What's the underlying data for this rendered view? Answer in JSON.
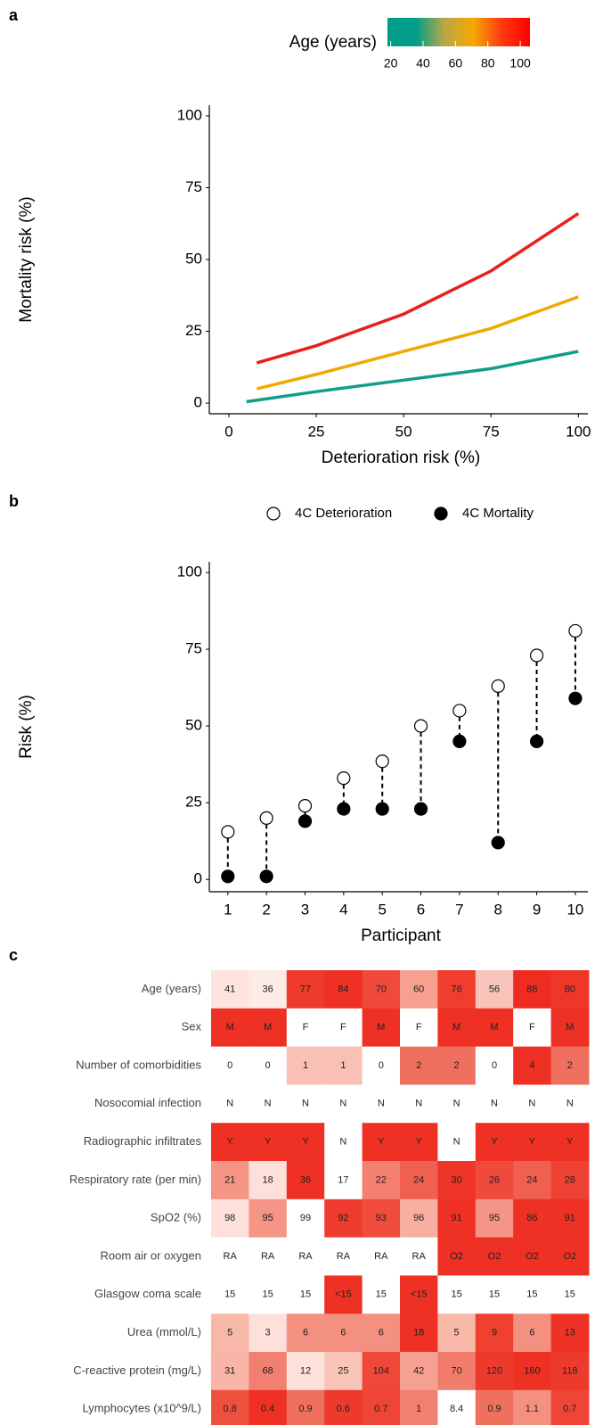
{
  "panels": [
    "a",
    "b",
    "c"
  ],
  "chart_data": [
    {
      "type": "line",
      "xlabel": "Deterioration risk (%)",
      "ylabel": "Mortality risk (%)",
      "xlim": [
        -5.6,
        104
      ],
      "ylim": [
        -3.7,
        103.7
      ],
      "xticks": [
        0,
        25,
        50,
        75,
        100
      ],
      "yticks": [
        0,
        25,
        50,
        75,
        100
      ],
      "colorbar": {
        "title": "Age (years)",
        "colors": [
          "#009e8a",
          "#009e8a",
          "#b8a848",
          "#f5a800",
          "#ff3a10",
          "#ff0000"
        ],
        "lim": [
          18,
          106
        ],
        "ticks": [
          20,
          40,
          60,
          80,
          100
        ]
      },
      "series": [
        {
          "color": "#e8201a",
          "x": [
            8,
            25,
            50,
            75,
            100
          ],
          "y": [
            14,
            20,
            31,
            46,
            66
          ]
        },
        {
          "color": "#eeaa00",
          "x": [
            8,
            25,
            50,
            75,
            100
          ],
          "y": [
            5,
            10,
            18,
            26,
            37
          ]
        },
        {
          "color": "#109e8a",
          "x": [
            5,
            25,
            50,
            75,
            100
          ],
          "y": [
            0.5,
            4,
            8,
            12,
            18
          ]
        }
      ]
    },
    {
      "type": "dumbbell",
      "xlabel": "Participant",
      "ylabel": "Risk (%)",
      "xlim": [
        0.52,
        10.44
      ],
      "ylim": [
        -4,
        103.5
      ],
      "xticks": [
        1,
        2,
        3,
        4,
        5,
        6,
        7,
        8,
        9,
        10
      ],
      "yticks": [
        0,
        25,
        50,
        75,
        100
      ],
      "x": [
        1,
        2,
        3,
        4,
        5,
        6,
        7,
        8,
        9,
        10
      ],
      "series": [
        {
          "name": "4C Deterioration",
          "color": "#ffffff",
          "values": [
            15.5,
            20,
            24,
            33,
            38.5,
            50,
            55,
            63,
            73,
            81
          ]
        },
        {
          "name": "4C Mortality",
          "color": "#000000",
          "values": [
            1,
            1,
            19,
            23,
            23,
            23,
            45,
            12,
            45,
            59
          ]
        }
      ]
    }
  ],
  "table": {
    "rows": [
      {
        "label": "Age (years)",
        "cells": [
          41,
          36,
          77,
          84,
          70,
          60,
          76,
          56,
          88,
          80
        ],
        "colors": [
          "#fde4de",
          "#fdebe7",
          "#ef3b2c",
          "#ee3124",
          "#f04a3c",
          "#f6a090",
          "#ef3d2e",
          "#f8c3b8",
          "#ee2d20",
          "#ef3629"
        ]
      },
      {
        "label": "Sex",
        "cells": [
          "M",
          "M",
          "F",
          "F",
          "M",
          "F",
          "M",
          "M",
          "F",
          "M"
        ],
        "colors": [
          "#ee3124",
          "#ee3124",
          "#ffffff",
          "#ffffff",
          "#ee3124",
          "#ffffff",
          "#ee3124",
          "#ee3124",
          "#ffffff",
          "#ee3124"
        ]
      },
      {
        "label": "Number of comorbidities",
        "cells": [
          0,
          0,
          1,
          1,
          0,
          2,
          2,
          0,
          4,
          2
        ],
        "colors": [
          "#ffffff",
          "#ffffff",
          "#f9c0b5",
          "#f9c0b5",
          "#ffffff",
          "#f07060",
          "#f07060",
          "#ffffff",
          "#ee3124",
          "#f07060"
        ]
      },
      {
        "label": "Nosocomial infection",
        "cells": [
          "N",
          "N",
          "N",
          "N",
          "N",
          "N",
          "N",
          "N",
          "N",
          "N"
        ],
        "colors": [
          "#ffffff",
          "#ffffff",
          "#ffffff",
          "#ffffff",
          "#ffffff",
          "#ffffff",
          "#ffffff",
          "#ffffff",
          "#ffffff",
          "#ffffff"
        ]
      },
      {
        "label": "Radiographic infiltrates",
        "cells": [
          "Y",
          "Y",
          "Y",
          "N",
          "Y",
          "Y",
          "N",
          "Y",
          "Y",
          "Y"
        ],
        "colors": [
          "#ee3124",
          "#ee3124",
          "#ee3124",
          "#ffffff",
          "#ee3124",
          "#ee3124",
          "#ffffff",
          "#ee3124",
          "#ee3124",
          "#ee3124"
        ]
      },
      {
        "label": "Respiratory rate (per min)",
        "cells": [
          21,
          18,
          36,
          17,
          22,
          24,
          30,
          26,
          24,
          28
        ],
        "colors": [
          "#f59585",
          "#fde0da",
          "#ee3124",
          "#ffffff",
          "#f48070",
          "#f06050",
          "#ee3528",
          "#ef4a3c",
          "#f06050",
          "#ef4234"
        ]
      },
      {
        "label": "SpO2 (%)",
        "cells": [
          98,
          95,
          99,
          92,
          93,
          96,
          91,
          95,
          86,
          91
        ],
        "colors": [
          "#fde0da",
          "#f49585",
          "#ffffff",
          "#ef3b2e",
          "#f04c3e",
          "#f7b0a0",
          "#ee3124",
          "#f49585",
          "#ee3124",
          "#ee3124"
        ]
      },
      {
        "label": "Room air or oxygen",
        "cells": [
          "RA",
          "RA",
          "RA",
          "RA",
          "RA",
          "RA",
          "O2",
          "O2",
          "O2",
          "O2"
        ],
        "colors": [
          "#ffffff",
          "#ffffff",
          "#ffffff",
          "#ffffff",
          "#ffffff",
          "#ffffff",
          "#ee3124",
          "#ee3124",
          "#ee3124",
          "#ee3124"
        ]
      },
      {
        "label": "Glasgow coma scale",
        "cells": [
          15,
          15,
          15,
          "<15",
          15,
          "<15",
          15,
          15,
          15,
          15
        ],
        "colors": [
          "#ffffff",
          "#ffffff",
          "#ffffff",
          "#ee3124",
          "#ffffff",
          "#ee3124",
          "#ffffff",
          "#ffffff",
          "#ffffff",
          "#ffffff"
        ]
      },
      {
        "label": "Urea (mmol/L)",
        "cells": [
          5,
          3,
          6,
          6,
          6,
          18,
          5,
          9,
          6,
          13
        ],
        "colors": [
          "#f8b8a8",
          "#fde0da",
          "#f49080",
          "#f49080",
          "#f49080",
          "#ee3124",
          "#f8b8a8",
          "#ef4030",
          "#f49080",
          "#ee3326"
        ]
      },
      {
        "label": "C-reactive protein (mg/L)",
        "cells": [
          31,
          68,
          12,
          25,
          104,
          42,
          70,
          120,
          160,
          118
        ],
        "colors": [
          "#f8b5a8",
          "#f28070",
          "#fde0da",
          "#f9c5b8",
          "#ef4838",
          "#f5a090",
          "#f27c6c",
          "#ee3a2c",
          "#ee3124",
          "#ee3a2c"
        ]
      },
      {
        "label": "Lymphocytes (x10^9/L)",
        "cells": [
          0.8,
          0.4,
          0.9,
          0.6,
          0.7,
          1,
          8.4,
          0.9,
          1.1,
          0.7
        ],
        "colors": [
          "#ee5040",
          "#ee3124",
          "#f07060",
          "#ee3a2c",
          "#ef4536",
          "#f28070",
          "#ffffff",
          "#f07060",
          "#f39080",
          "#ef4536"
        ]
      }
    ]
  }
}
